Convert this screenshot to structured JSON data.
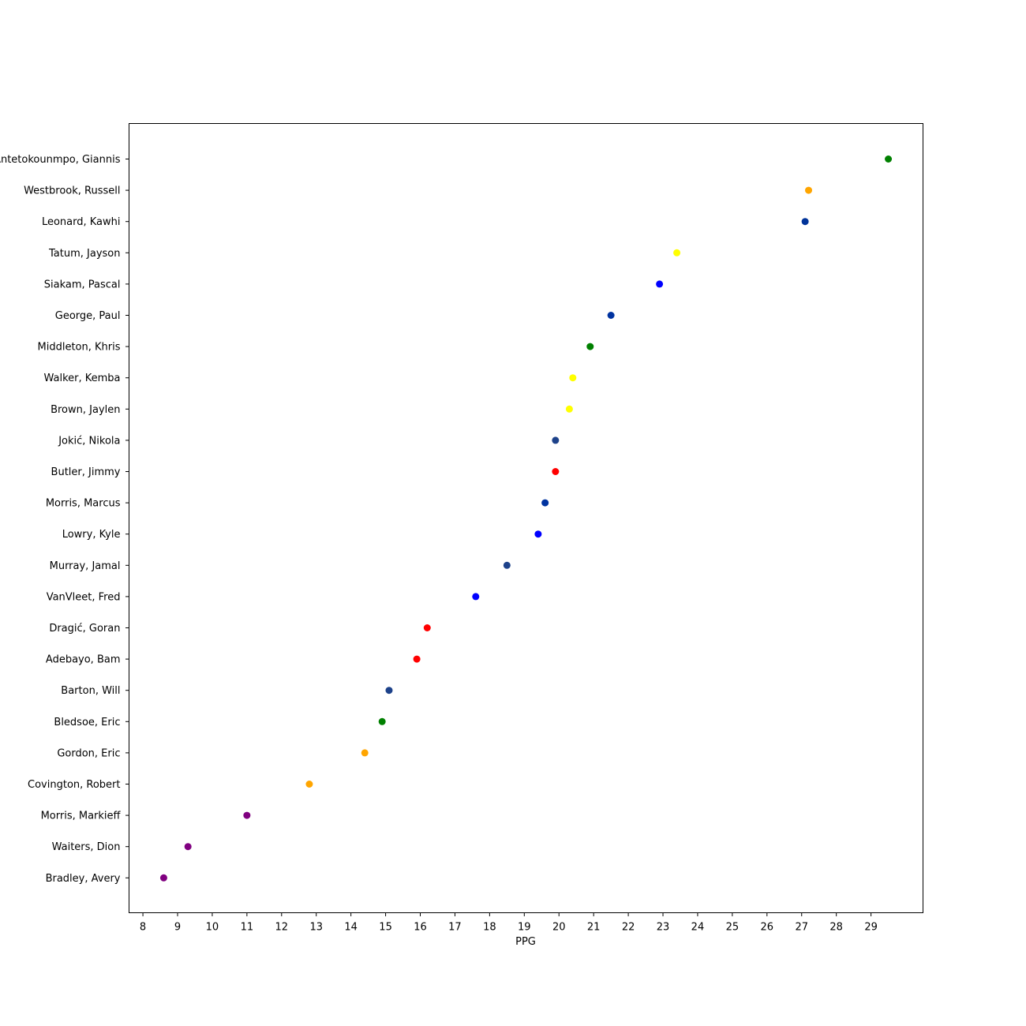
{
  "chart_data": {
    "type": "scatter",
    "xlabel": "PPG",
    "ylabel": "",
    "title": "",
    "xlim": [
      7.6,
      30.5
    ],
    "xticks": [
      8,
      9,
      10,
      11,
      12,
      13,
      14,
      15,
      16,
      17,
      18,
      19,
      20,
      21,
      22,
      23,
      24,
      25,
      26,
      27,
      28,
      29
    ],
    "grid": false,
    "legend": "none",
    "points": [
      {
        "player": "Antetokounmpo, Giannis",
        "ppg": 29.5,
        "color": "#008000"
      },
      {
        "player": "Westbrook, Russell",
        "ppg": 27.2,
        "color": "#ffa500"
      },
      {
        "player": "Leonard, Kawhi",
        "ppg": 27.1,
        "color": "#003399"
      },
      {
        "player": "Tatum, Jayson",
        "ppg": 23.4,
        "color": "#ffff00"
      },
      {
        "player": "Siakam, Pascal",
        "ppg": 22.9,
        "color": "#0000ff"
      },
      {
        "player": "George, Paul",
        "ppg": 21.5,
        "color": "#0033a0"
      },
      {
        "player": "Middleton, Khris",
        "ppg": 20.9,
        "color": "#008000"
      },
      {
        "player": "Walker, Kemba",
        "ppg": 20.4,
        "color": "#ffff00"
      },
      {
        "player": "Brown, Jaylen",
        "ppg": 20.3,
        "color": "#ffff00"
      },
      {
        "player": "Jokić, Nikola",
        "ppg": 19.9,
        "color": "#1d428a"
      },
      {
        "player": "Butler, Jimmy",
        "ppg": 19.9,
        "color": "#ff0000"
      },
      {
        "player": "Morris, Marcus",
        "ppg": 19.6,
        "color": "#0033a0"
      },
      {
        "player": "Lowry, Kyle",
        "ppg": 19.4,
        "color": "#0000ff"
      },
      {
        "player": "Murray, Jamal",
        "ppg": 18.5,
        "color": "#1d428a"
      },
      {
        "player": "VanVleet, Fred",
        "ppg": 17.6,
        "color": "#0000ff"
      },
      {
        "player": "Dragić, Goran",
        "ppg": 16.2,
        "color": "#ff0000"
      },
      {
        "player": "Adebayo, Bam",
        "ppg": 15.9,
        "color": "#ff0000"
      },
      {
        "player": "Barton, Will",
        "ppg": 15.1,
        "color": "#1d428a"
      },
      {
        "player": "Bledsoe, Eric",
        "ppg": 14.9,
        "color": "#008000"
      },
      {
        "player": "Gordon, Eric",
        "ppg": 14.4,
        "color": "#ffa500"
      },
      {
        "player": "Covington, Robert",
        "ppg": 12.8,
        "color": "#ffa500"
      },
      {
        "player": "Morris, Markieff",
        "ppg": 11.0,
        "color": "#800080"
      },
      {
        "player": "Waiters, Dion",
        "ppg": 9.3,
        "color": "#800080"
      },
      {
        "player": "Bradley, Avery",
        "ppg": 8.6,
        "color": "#800080"
      }
    ]
  }
}
